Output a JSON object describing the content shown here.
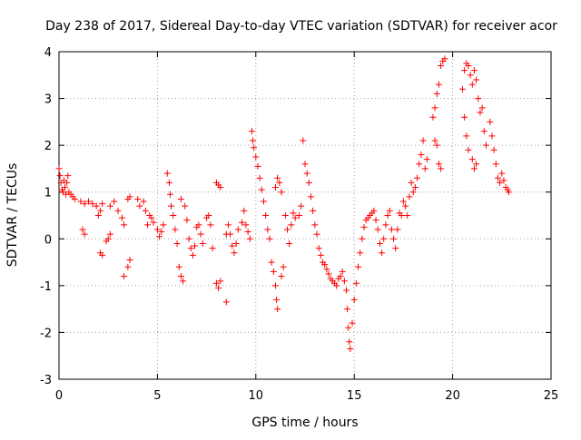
{
  "chart_data": {
    "type": "scatter",
    "title": "Day 238 of 2017, Sidereal Day-to-day VTEC variation (SDTVAR) for receiver acor",
    "xlabel": "GPS time / hours",
    "ylabel": "SDTVAR / TECUs",
    "xlim": [
      0,
      25
    ],
    "ylim": [
      -3,
      4
    ],
    "grid": true,
    "marker": "+",
    "color": "#ff0000",
    "x_ticks": [
      0,
      5,
      10,
      15,
      20,
      25
    ],
    "x_tick_labels": [
      "0",
      "5",
      "10",
      "15",
      "20",
      "25"
    ],
    "y_ticks": [
      -3,
      -2,
      -1,
      0,
      1,
      2,
      3,
      4
    ],
    "y_tick_labels": [
      "-3",
      "-2",
      "-1",
      "0",
      "1",
      "2",
      "3",
      "4"
    ],
    "series": [
      {
        "name": "SDTVAR",
        "points": [
          [
            0.0,
            1.5
          ],
          [
            0.05,
            1.35
          ],
          [
            0.1,
            1.2
          ],
          [
            0.15,
            1.05
          ],
          [
            0.2,
            1.0
          ],
          [
            0.25,
            1.25
          ],
          [
            0.3,
            1.1
          ],
          [
            0.35,
            0.95
          ],
          [
            0.4,
            1.2
          ],
          [
            0.45,
            1.35
          ],
          [
            0.5,
            1.0
          ],
          [
            0.6,
            0.95
          ],
          [
            0.7,
            0.9
          ],
          [
            0.8,
            0.85
          ],
          [
            1.2,
            0.2
          ],
          [
            1.3,
            0.1
          ],
          [
            1.1,
            0.8
          ],
          [
            1.3,
            0.75
          ],
          [
            1.5,
            0.8
          ],
          [
            1.7,
            0.75
          ],
          [
            1.9,
            0.7
          ],
          [
            2.0,
            0.5
          ],
          [
            2.1,
            0.6
          ],
          [
            2.2,
            0.75
          ],
          [
            2.1,
            -0.3
          ],
          [
            2.2,
            -0.35
          ],
          [
            2.4,
            -0.05
          ],
          [
            2.5,
            0.0
          ],
          [
            2.6,
            0.1
          ],
          [
            2.6,
            0.7
          ],
          [
            2.8,
            0.8
          ],
          [
            3.0,
            0.6
          ],
          [
            3.2,
            0.45
          ],
          [
            3.3,
            0.3
          ],
          [
            3.3,
            -0.8
          ],
          [
            3.5,
            -0.6
          ],
          [
            3.6,
            -0.45
          ],
          [
            3.5,
            0.85
          ],
          [
            3.6,
            0.9
          ],
          [
            4.0,
            0.85
          ],
          [
            4.1,
            0.7
          ],
          [
            4.3,
            0.8
          ],
          [
            4.4,
            0.6
          ],
          [
            4.5,
            0.3
          ],
          [
            4.6,
            0.5
          ],
          [
            4.7,
            0.45
          ],
          [
            4.8,
            0.35
          ],
          [
            5.0,
            0.2
          ],
          [
            5.1,
            0.05
          ],
          [
            5.2,
            0.15
          ],
          [
            5.3,
            0.3
          ],
          [
            5.5,
            1.4
          ],
          [
            5.6,
            1.2
          ],
          [
            5.65,
            0.95
          ],
          [
            5.7,
            0.7
          ],
          [
            5.8,
            0.5
          ],
          [
            5.9,
            0.2
          ],
          [
            6.0,
            -0.1
          ],
          [
            6.1,
            -0.6
          ],
          [
            6.2,
            -0.8
          ],
          [
            6.3,
            -0.9
          ],
          [
            6.2,
            0.85
          ],
          [
            6.4,
            0.7
          ],
          [
            6.5,
            0.4
          ],
          [
            6.6,
            0.0
          ],
          [
            6.7,
            -0.2
          ],
          [
            6.8,
            -0.35
          ],
          [
            6.9,
            -0.15
          ],
          [
            7.0,
            0.25
          ],
          [
            7.1,
            0.3
          ],
          [
            7.2,
            0.1
          ],
          [
            7.3,
            -0.1
          ],
          [
            7.5,
            0.45
          ],
          [
            7.6,
            0.5
          ],
          [
            7.7,
            0.3
          ],
          [
            7.8,
            -0.2
          ],
          [
            8.0,
            1.2
          ],
          [
            8.1,
            1.15
          ],
          [
            8.2,
            1.1
          ],
          [
            8.0,
            -0.95
          ],
          [
            8.1,
            -1.05
          ],
          [
            8.2,
            -0.9
          ],
          [
            8.5,
            -1.35
          ],
          [
            8.5,
            0.1
          ],
          [
            8.6,
            0.3
          ],
          [
            8.7,
            0.1
          ],
          [
            8.8,
            -0.15
          ],
          [
            8.9,
            -0.3
          ],
          [
            9.0,
            -0.1
          ],
          [
            9.1,
            0.2
          ],
          [
            9.3,
            0.35
          ],
          [
            9.4,
            0.6
          ],
          [
            9.5,
            0.3
          ],
          [
            9.6,
            0.15
          ],
          [
            9.7,
            0.0
          ],
          [
            9.8,
            2.3
          ],
          [
            9.85,
            2.1
          ],
          [
            9.9,
            1.95
          ],
          [
            10.0,
            1.75
          ],
          [
            10.1,
            1.55
          ],
          [
            10.2,
            1.3
          ],
          [
            10.3,
            1.05
          ],
          [
            10.4,
            0.8
          ],
          [
            10.5,
            0.5
          ],
          [
            10.6,
            0.2
          ],
          [
            10.7,
            0.0
          ],
          [
            10.8,
            -0.5
          ],
          [
            10.9,
            -0.7
          ],
          [
            11.0,
            -1.0
          ],
          [
            11.05,
            -1.3
          ],
          [
            11.1,
            -1.5
          ],
          [
            11.0,
            1.1
          ],
          [
            11.1,
            1.3
          ],
          [
            11.2,
            1.2
          ],
          [
            11.3,
            1.0
          ],
          [
            11.3,
            -0.8
          ],
          [
            11.4,
            -0.6
          ],
          [
            11.5,
            0.5
          ],
          [
            11.6,
            0.2
          ],
          [
            11.7,
            -0.1
          ],
          [
            11.8,
            0.3
          ],
          [
            11.9,
            0.55
          ],
          [
            12.0,
            0.45
          ],
          [
            12.2,
            0.5
          ],
          [
            12.3,
            0.7
          ],
          [
            12.4,
            2.1
          ],
          [
            12.5,
            1.6
          ],
          [
            12.6,
            1.4
          ],
          [
            12.7,
            1.2
          ],
          [
            12.8,
            0.9
          ],
          [
            12.9,
            0.6
          ],
          [
            13.0,
            0.3
          ],
          [
            13.1,
            0.1
          ],
          [
            13.2,
            -0.2
          ],
          [
            13.3,
            -0.35
          ],
          [
            13.4,
            -0.5
          ],
          [
            13.5,
            -0.55
          ],
          [
            13.6,
            -0.65
          ],
          [
            13.7,
            -0.75
          ],
          [
            13.8,
            -0.85
          ],
          [
            13.9,
            -0.9
          ],
          [
            14.0,
            -0.95
          ],
          [
            14.1,
            -1.0
          ],
          [
            14.2,
            -0.85
          ],
          [
            14.3,
            -0.8
          ],
          [
            14.4,
            -0.7
          ],
          [
            14.5,
            -0.9
          ],
          [
            14.6,
            -1.1
          ],
          [
            14.65,
            -1.5
          ],
          [
            14.7,
            -1.9
          ],
          [
            14.75,
            -2.2
          ],
          [
            14.8,
            -2.35
          ],
          [
            14.9,
            -1.8
          ],
          [
            15.0,
            -1.3
          ],
          [
            15.1,
            -0.95
          ],
          [
            15.2,
            -0.6
          ],
          [
            15.3,
            -0.3
          ],
          [
            15.4,
            0.0
          ],
          [
            15.5,
            0.25
          ],
          [
            15.6,
            0.4
          ],
          [
            15.7,
            0.45
          ],
          [
            15.8,
            0.5
          ],
          [
            15.9,
            0.55
          ],
          [
            16.0,
            0.6
          ],
          [
            16.1,
            0.4
          ],
          [
            16.2,
            0.2
          ],
          [
            16.3,
            -0.1
          ],
          [
            16.4,
            -0.3
          ],
          [
            16.5,
            0.0
          ],
          [
            16.6,
            0.3
          ],
          [
            16.7,
            0.5
          ],
          [
            16.8,
            0.6
          ],
          [
            16.9,
            0.2
          ],
          [
            17.0,
            0.0
          ],
          [
            17.1,
            -0.2
          ],
          [
            17.2,
            0.2
          ],
          [
            17.3,
            0.55
          ],
          [
            17.4,
            0.5
          ],
          [
            17.5,
            0.8
          ],
          [
            17.6,
            0.7
          ],
          [
            17.7,
            0.5
          ],
          [
            17.8,
            0.9
          ],
          [
            17.9,
            1.2
          ],
          [
            18.0,
            1.0
          ],
          [
            18.1,
            1.1
          ],
          [
            18.2,
            1.3
          ],
          [
            18.3,
            1.6
          ],
          [
            18.4,
            1.8
          ],
          [
            18.5,
            2.1
          ],
          [
            18.6,
            1.5
          ],
          [
            18.7,
            1.7
          ],
          [
            19.0,
            2.6
          ],
          [
            19.1,
            2.8
          ],
          [
            19.2,
            3.1
          ],
          [
            19.3,
            3.3
          ],
          [
            19.1,
            2.1
          ],
          [
            19.2,
            2.0
          ],
          [
            19.3,
            1.6
          ],
          [
            19.4,
            1.5
          ],
          [
            19.4,
            3.7
          ],
          [
            19.5,
            3.8
          ],
          [
            19.6,
            3.85
          ],
          [
            20.5,
            3.2
          ],
          [
            20.6,
            3.6
          ],
          [
            20.7,
            3.75
          ],
          [
            20.8,
            3.7
          ],
          [
            20.9,
            3.5
          ],
          [
            21.0,
            3.3
          ],
          [
            20.6,
            2.6
          ],
          [
            20.7,
            2.2
          ],
          [
            20.8,
            1.9
          ],
          [
            21.1,
            3.6
          ],
          [
            21.2,
            3.4
          ],
          [
            21.3,
            3.0
          ],
          [
            21.4,
            2.7
          ],
          [
            21.0,
            1.7
          ],
          [
            21.1,
            1.5
          ],
          [
            21.2,
            1.6
          ],
          [
            21.5,
            2.8
          ],
          [
            21.6,
            2.3
          ],
          [
            21.7,
            2.0
          ],
          [
            21.9,
            2.5
          ],
          [
            22.0,
            2.2
          ],
          [
            22.1,
            1.9
          ],
          [
            22.2,
            1.6
          ],
          [
            22.3,
            1.3
          ],
          [
            22.4,
            1.2
          ],
          [
            22.5,
            1.4
          ],
          [
            22.6,
            1.25
          ],
          [
            22.7,
            1.1
          ],
          [
            22.8,
            1.05
          ],
          [
            22.85,
            1.0
          ]
        ]
      }
    ]
  }
}
